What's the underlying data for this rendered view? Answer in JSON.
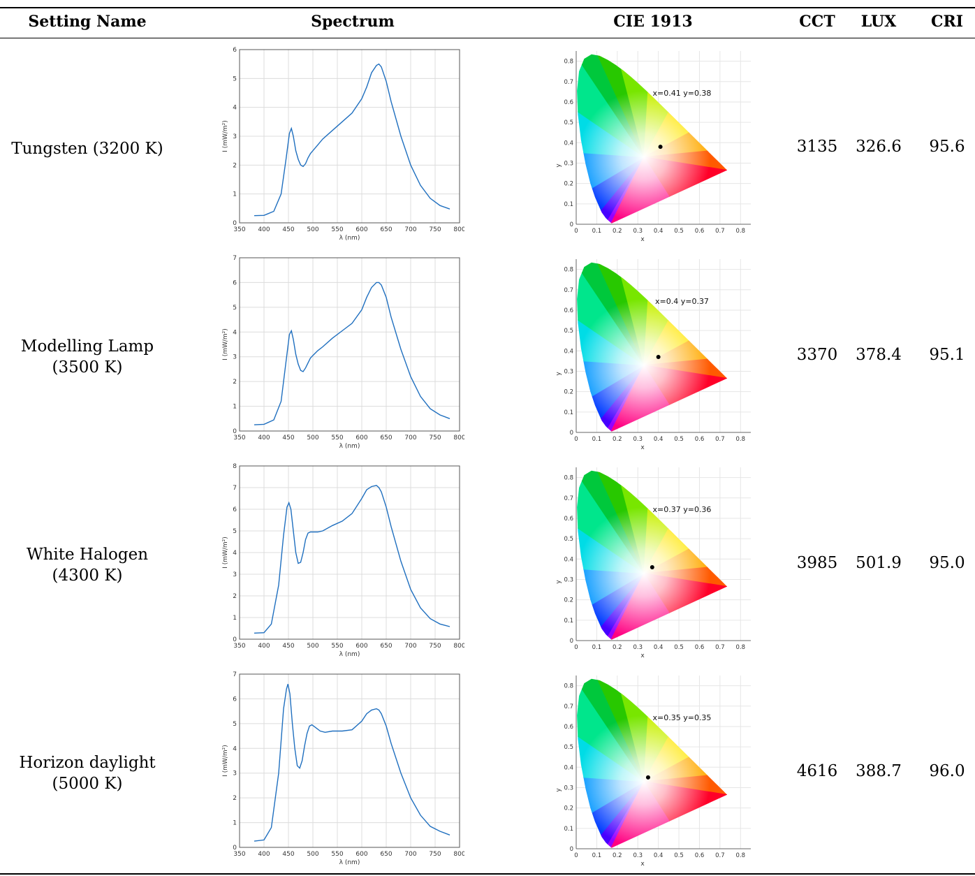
{
  "columns": [
    "Setting Name",
    "Spectrum",
    "CIE 1913",
    "CCT",
    "LUX",
    "CRI"
  ],
  "rows": [
    {
      "name_lines": [
        "Tungsten (3200 K)"
      ],
      "cct": "3135",
      "lux": "326.6",
      "cri": "95.6",
      "chart_data": [
        {
          "type": "line",
          "xlabel": "λ (nm)",
          "ylabel": "I (mW/m²)",
          "xlim": [
            350,
            800
          ],
          "ylim": [
            0,
            6
          ],
          "yticks": [
            0,
            1,
            2,
            3,
            4,
            5,
            6
          ],
          "xticks": [
            350,
            400,
            450,
            500,
            550,
            600,
            650,
            700,
            750,
            800
          ],
          "series": [
            {
              "x": [
                380,
                400,
                420,
                435,
                445,
                452,
                456,
                460,
                465,
                470,
                475,
                480,
                485,
                490,
                495,
                500,
                510,
                520,
                540,
                560,
                580,
                600,
                610,
                620,
                630,
                635,
                640,
                650,
                660,
                680,
                700,
                720,
                740,
                760,
                780
              ],
              "values": [
                0.25,
                0.26,
                0.4,
                1.0,
                2.2,
                3.1,
                3.27,
                3.0,
                2.5,
                2.2,
                2.0,
                1.95,
                2.05,
                2.25,
                2.4,
                2.5,
                2.7,
                2.9,
                3.2,
                3.5,
                3.8,
                4.3,
                4.7,
                5.2,
                5.45,
                5.5,
                5.4,
                4.9,
                4.2,
                3.0,
                2.0,
                1.3,
                0.85,
                0.6,
                0.48
              ]
            }
          ],
          "grid": true
        },
        {
          "type": "scatter",
          "xlabel": "x",
          "ylabel": "y",
          "xlim": [
            0,
            0.85
          ],
          "ylim": [
            0,
            0.85
          ],
          "ticks": [
            0,
            0.1,
            0.2,
            0.3,
            0.4,
            0.5,
            0.6,
            0.7,
            0.8
          ],
          "point": {
            "x": 0.41,
            "y": 0.38
          },
          "annotation": "x=0.41 y=0.38",
          "grid": true
        }
      ]
    },
    {
      "name_lines": [
        "Modelling Lamp",
        "(3500 K)"
      ],
      "cct": "3370",
      "lux": "378.4",
      "cri": "95.1",
      "chart_data": [
        {
          "type": "line",
          "xlabel": "λ (nm)",
          "ylabel": "I (mW/m²)",
          "xlim": [
            350,
            800
          ],
          "ylim": [
            0,
            7
          ],
          "yticks": [
            0,
            1,
            2,
            3,
            4,
            5,
            6,
            7
          ],
          "xticks": [
            350,
            400,
            450,
            500,
            550,
            600,
            650,
            700,
            750,
            800
          ],
          "series": [
            {
              "x": [
                380,
                400,
                420,
                435,
                445,
                452,
                456,
                460,
                465,
                470,
                475,
                480,
                485,
                490,
                495,
                500,
                510,
                520,
                540,
                560,
                580,
                600,
                610,
                620,
                630,
                635,
                640,
                650,
                660,
                680,
                700,
                720,
                740,
                760,
                780
              ],
              "values": [
                0.25,
                0.27,
                0.45,
                1.2,
                2.8,
                3.9,
                4.05,
                3.7,
                3.1,
                2.7,
                2.45,
                2.4,
                2.55,
                2.75,
                2.95,
                3.05,
                3.25,
                3.4,
                3.75,
                4.05,
                4.35,
                4.9,
                5.4,
                5.8,
                6.0,
                6.0,
                5.9,
                5.4,
                4.6,
                3.3,
                2.2,
                1.4,
                0.9,
                0.65,
                0.5
              ]
            }
          ],
          "grid": true
        },
        {
          "type": "scatter",
          "xlabel": "x",
          "ylabel": "y",
          "xlim": [
            0,
            0.85
          ],
          "ylim": [
            0,
            0.85
          ],
          "ticks": [
            0,
            0.1,
            0.2,
            0.3,
            0.4,
            0.5,
            0.6,
            0.7,
            0.8
          ],
          "point": {
            "x": 0.4,
            "y": 0.37
          },
          "annotation": "x=0.4 y=0.37",
          "grid": true
        }
      ]
    },
    {
      "name_lines": [
        "White Halogen",
        "(4300 K)"
      ],
      "cct": "3985",
      "lux": "501.9",
      "cri": "95.0",
      "chart_data": [
        {
          "type": "line",
          "xlabel": "λ (nm)",
          "ylabel": "I (mW/m²)",
          "xlim": [
            350,
            800
          ],
          "ylim": [
            0,
            8
          ],
          "yticks": [
            0,
            1,
            2,
            3,
            4,
            5,
            6,
            7,
            8
          ],
          "xticks": [
            350,
            400,
            450,
            500,
            550,
            600,
            650,
            700,
            750,
            800
          ],
          "series": [
            {
              "x": [
                380,
                400,
                415,
                430,
                440,
                447,
                451,
                455,
                460,
                465,
                470,
                475,
                480,
                485,
                490,
                495,
                500,
                510,
                520,
                540,
                560,
                580,
                600,
                610,
                620,
                630,
                635,
                640,
                650,
                660,
                680,
                700,
                720,
                740,
                760,
                780
              ],
              "values": [
                0.28,
                0.3,
                0.7,
                2.5,
                4.8,
                6.1,
                6.3,
                6.0,
                5.0,
                4.0,
                3.5,
                3.55,
                4.0,
                4.6,
                4.9,
                4.95,
                4.95,
                4.95,
                5.0,
                5.25,
                5.45,
                5.8,
                6.5,
                6.9,
                7.05,
                7.1,
                7.0,
                6.8,
                6.1,
                5.2,
                3.6,
                2.3,
                1.45,
                0.95,
                0.7,
                0.58
              ]
            }
          ],
          "grid": true
        },
        {
          "type": "scatter",
          "xlabel": "x",
          "ylabel": "y",
          "xlim": [
            0,
            0.85
          ],
          "ylim": [
            0,
            0.85
          ],
          "ticks": [
            0,
            0.1,
            0.2,
            0.3,
            0.4,
            0.5,
            0.6,
            0.7,
            0.8
          ],
          "point": {
            "x": 0.37,
            "y": 0.36
          },
          "annotation": "x=0.37 y=0.36",
          "grid": true
        }
      ]
    },
    {
      "name_lines": [
        "Horizon daylight",
        "(5000 K)"
      ],
      "cct": "4616",
      "lux": "388.7",
      "cri": "96.0",
      "chart_data": [
        {
          "type": "line",
          "xlabel": "λ (nm)",
          "ylabel": "I (mW/m²)",
          "xlim": [
            350,
            800
          ],
          "ylim": [
            0,
            7
          ],
          "yticks": [
            0,
            1,
            2,
            3,
            4,
            5,
            6,
            7
          ],
          "xticks": [
            350,
            400,
            450,
            500,
            550,
            600,
            650,
            700,
            750,
            800
          ],
          "series": [
            {
              "x": [
                380,
                400,
                415,
                430,
                440,
                446,
                449,
                453,
                458,
                463,
                468,
                473,
                478,
                483,
                488,
                493,
                498,
                505,
                515,
                525,
                540,
                560,
                580,
                600,
                610,
                620,
                630,
                635,
                640,
                650,
                660,
                680,
                700,
                720,
                740,
                760,
                780
              ],
              "values": [
                0.25,
                0.3,
                0.8,
                3.0,
                5.6,
                6.4,
                6.6,
                6.2,
                5.0,
                4.0,
                3.3,
                3.2,
                3.5,
                4.1,
                4.6,
                4.9,
                4.95,
                4.85,
                4.7,
                4.65,
                4.7,
                4.7,
                4.75,
                5.1,
                5.4,
                5.55,
                5.6,
                5.55,
                5.4,
                4.9,
                4.2,
                3.0,
                2.0,
                1.3,
                0.85,
                0.65,
                0.5
              ]
            }
          ],
          "grid": true
        },
        {
          "type": "scatter",
          "xlabel": "x",
          "ylabel": "y",
          "xlim": [
            0,
            0.85
          ],
          "ylim": [
            0,
            0.85
          ],
          "ticks": [
            0,
            0.1,
            0.2,
            0.3,
            0.4,
            0.5,
            0.6,
            0.7,
            0.8
          ],
          "point": {
            "x": 0.35,
            "y": 0.35
          },
          "annotation": "x=0.35 y=0.35",
          "grid": true
        }
      ]
    }
  ],
  "colors": {
    "line": "#1f6fbf",
    "grid": "#dcdcdc",
    "axis": "#555555"
  }
}
